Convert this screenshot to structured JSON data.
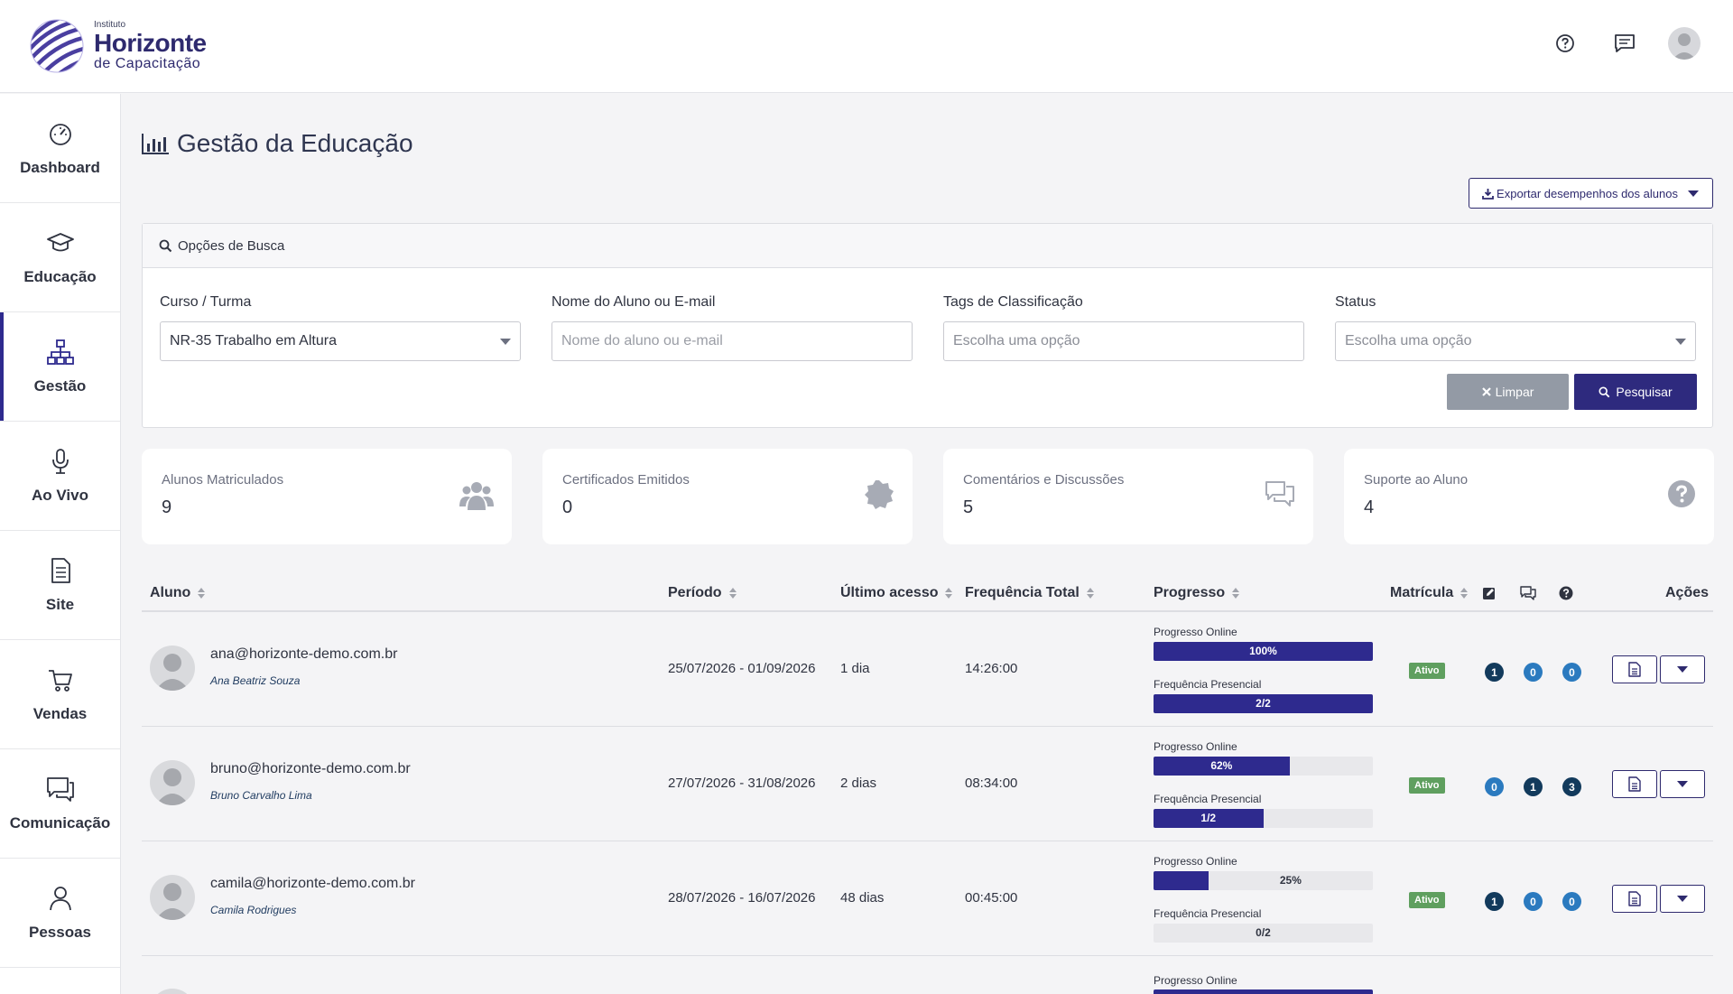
{
  "brand": {
    "small": "Instituto",
    "main": "Horizonte",
    "sub": "de Capacitação"
  },
  "sidebar": {
    "items": [
      {
        "label": "Dashboard",
        "icon": "dashboard-gauge-icon"
      },
      {
        "label": "Educação",
        "icon": "graduation-cap-icon"
      },
      {
        "label": "Gestão",
        "icon": "org-chart-icon",
        "active": true
      },
      {
        "label": "Ao Vivo",
        "icon": "microphone-icon"
      },
      {
        "label": "Site",
        "icon": "document-icon"
      },
      {
        "label": "Vendas",
        "icon": "cart-icon"
      },
      {
        "label": "Comunicação",
        "icon": "chat-icon"
      },
      {
        "label": "Pessoas",
        "icon": "person-icon"
      }
    ]
  },
  "page": {
    "title": "Gestão da Educação",
    "export_label": "Exportar desempenhos dos alunos"
  },
  "search": {
    "title": "Opções de Busca",
    "course_label": "Curso / Turma",
    "course_value": "NR-35 Trabalho em Altura",
    "student_label": "Nome do Aluno ou E-mail",
    "student_placeholder": "Nome do aluno ou e-mail",
    "tags_label": "Tags de Classificação",
    "tags_placeholder": "Escolha uma opção",
    "status_label": "Status",
    "status_placeholder": "Escolha uma opção",
    "clear_label": "Limpar",
    "search_label": "Pesquisar"
  },
  "stats": [
    {
      "label": "Alunos Matriculados",
      "value": "9",
      "icon": "users-icon"
    },
    {
      "label": "Certificados Emitidos",
      "value": "0",
      "icon": "certificate-seal-icon"
    },
    {
      "label": "Comentários e Discussões",
      "value": "5",
      "icon": "comments-icon"
    },
    {
      "label": "Suporte ao Aluno",
      "value": "4",
      "icon": "help-circle-icon"
    }
  ],
  "table": {
    "headers": {
      "aluno": "Aluno",
      "periodo": "Período",
      "ultimo_acesso": "Último acesso",
      "frequencia": "Frequência Total",
      "progresso": "Progresso",
      "matricula": "Matrícula",
      "acoes": "Ações"
    },
    "progress_online_label": "Progresso Online",
    "attendance_label": "Frequência Presencial",
    "rows": [
      {
        "email": "ana@horizonte-demo.com.br",
        "name": "Ana Beatriz Souza",
        "periodo": "25/07/2026 - 01/09/2026",
        "ultimo": "1 dia",
        "frequencia": "14:26:00",
        "online_pct": 100,
        "online_text": "100%",
        "presencial_pct": 100,
        "presencial_text": "2/2",
        "status": "Ativo",
        "c1": "1",
        "c2": "0",
        "c3": "0"
      },
      {
        "email": "bruno@horizonte-demo.com.br",
        "name": "Bruno Carvalho Lima",
        "periodo": "27/07/2026 - 31/08/2026",
        "ultimo": "2 dias",
        "frequencia": "08:34:00",
        "online_pct": 62,
        "online_text": "62%",
        "presencial_pct": 50,
        "presencial_text": "1/2",
        "status": "Ativo",
        "c1": "0",
        "c2": "1",
        "c3": "3"
      },
      {
        "email": "camila@horizonte-demo.com.br",
        "name": "Camila Rodrigues",
        "periodo": "28/07/2026 - 16/07/2026",
        "ultimo": "48 dias",
        "frequencia": "00:45:00",
        "online_pct": 25,
        "online_text": "25%",
        "presencial_pct": 0,
        "presencial_text": "0/2",
        "status": "Ativo",
        "c1": "1",
        "c2": "0",
        "c3": "0"
      }
    ],
    "partial_row_label": "Progresso Online"
  },
  "colors": {
    "primary": "#2e2a8e",
    "success": "#5f9f5f",
    "count_dark": "#123a5c",
    "count_blue": "#2b7abf"
  }
}
